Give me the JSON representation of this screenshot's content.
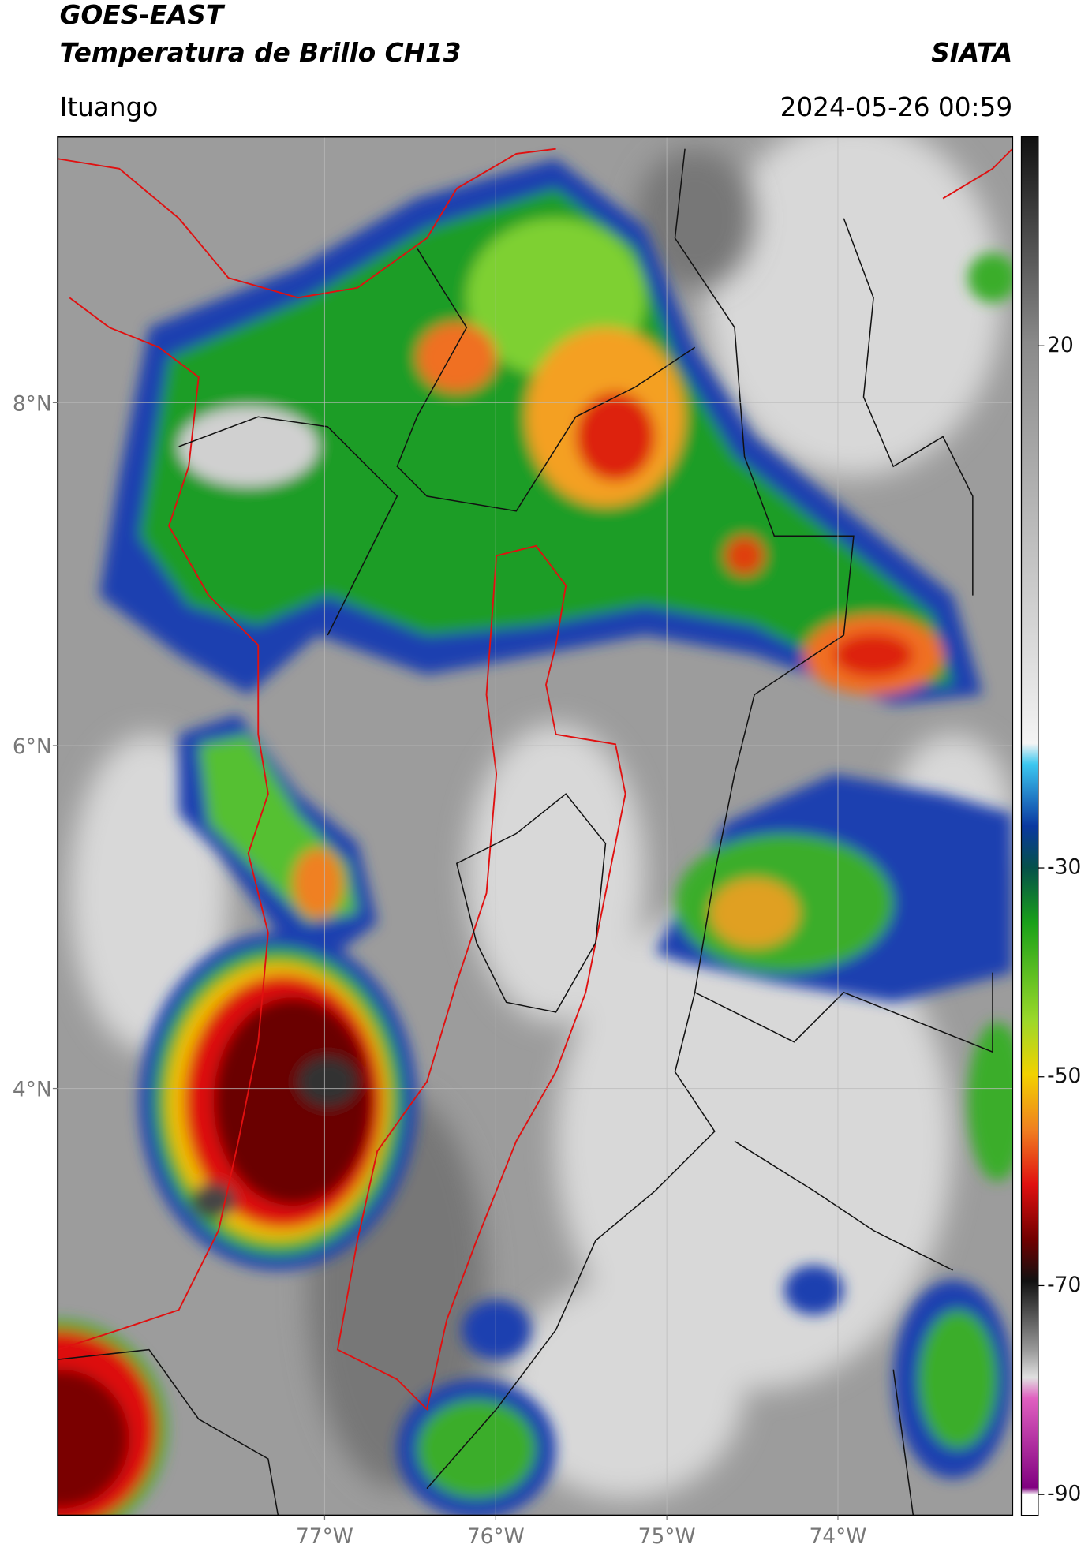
{
  "header": {
    "title": "GOES-EAST",
    "subtitle": "Temperatura de Brillo CH13",
    "brand": "SIATA",
    "location": "Ituango",
    "datetime": "2024-05-26 00:59"
  },
  "map": {
    "lon_lim": [
      -78.56,
      -72.98
    ],
    "lat_lim": [
      1.51,
      9.55
    ],
    "grid": true,
    "lon_ticks": [
      {
        "value": -77,
        "label": "77°W"
      },
      {
        "value": -76,
        "label": "76°W"
      },
      {
        "value": -75,
        "label": "75°W"
      },
      {
        "value": -74,
        "label": "74°W"
      }
    ],
    "lat_ticks": [
      {
        "value": 8,
        "label": "8°N"
      },
      {
        "value": 6,
        "label": "6°N"
      },
      {
        "value": 4,
        "label": "4°N"
      }
    ]
  },
  "colorbar": {
    "lim": [
      -92,
      40
    ],
    "ticks": [
      20,
      -30,
      -50,
      -70,
      -90
    ]
  }
}
